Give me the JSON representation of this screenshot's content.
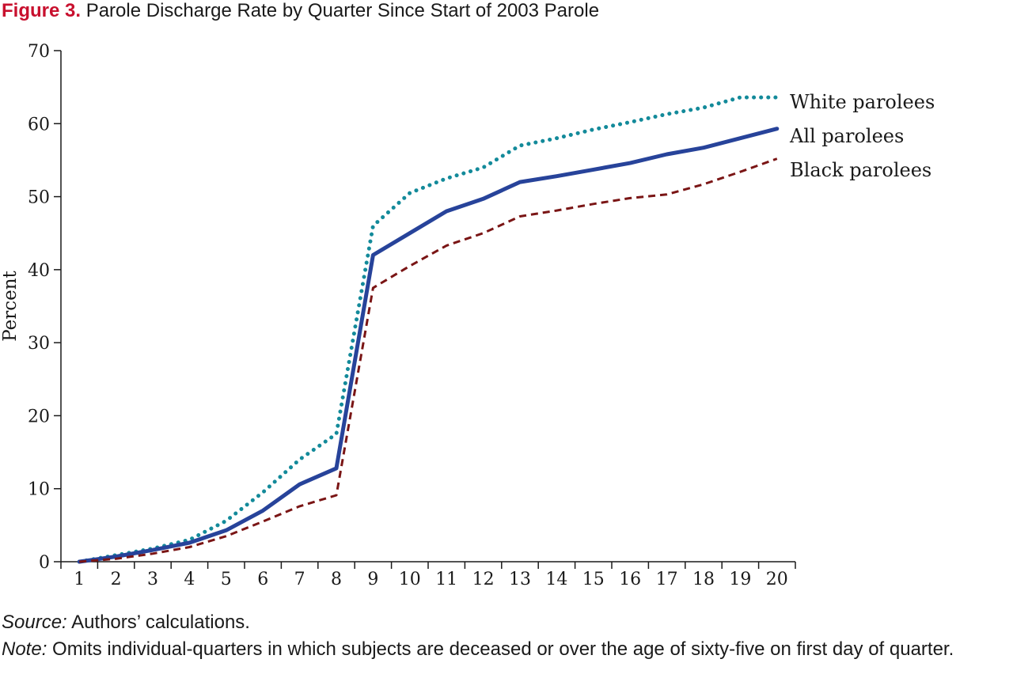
{
  "figure": {
    "label": "Figure 3.",
    "title": "Parole Discharge Rate by Quarter Since Start of 2003 Parole"
  },
  "notes": {
    "source_label": "Source:",
    "source_text": " Authors’ calculations.",
    "note_label": "Note:",
    "note_text": " Omits individual-quarters in which subjects are deceased or over the age of sixty-five on first day of quarter."
  },
  "chart_data": {
    "type": "line",
    "title": "Parole Discharge Rate by Quarter Since Start of 2003 Parole",
    "xlabel": "",
    "ylabel": "Percent",
    "x": [
      1,
      2,
      3,
      4,
      5,
      6,
      7,
      8,
      9,
      10,
      11,
      12,
      13,
      14,
      15,
      16,
      17,
      18,
      19,
      20
    ],
    "xlim": [
      0.5,
      20.5
    ],
    "ylim": [
      0,
      70
    ],
    "yticks": [
      0,
      10,
      20,
      30,
      40,
      50,
      60,
      70
    ],
    "grid": false,
    "legend": "direct labels at right end of lines",
    "series": [
      {
        "name": "White parolees",
        "style": "dotted",
        "color": "#138a9a",
        "values": [
          0,
          0.9,
          1.8,
          3.0,
          5.6,
          9.5,
          14.0,
          17.5,
          46.0,
          50.5,
          52.5,
          54.0,
          57.0,
          58.0,
          59.2,
          60.2,
          61.3,
          62.2,
          63.6,
          63.6
        ]
      },
      {
        "name": "All parolees",
        "style": "solid",
        "color": "#27439a",
        "values": [
          0,
          0.7,
          1.6,
          2.6,
          4.3,
          7.0,
          10.6,
          12.8,
          42.0,
          45.0,
          48.0,
          49.7,
          52.0,
          52.8,
          53.7,
          54.6,
          55.8,
          56.7,
          58.0,
          59.3
        ]
      },
      {
        "name": "Black parolees",
        "style": "dashed",
        "color": "#7a1515",
        "values": [
          0,
          0.4,
          1.1,
          2.0,
          3.5,
          5.5,
          7.6,
          9.1,
          37.5,
          40.5,
          43.3,
          45.0,
          47.3,
          48.1,
          49.0,
          49.8,
          50.3,
          51.7,
          53.4,
          55.2
        ]
      }
    ]
  }
}
